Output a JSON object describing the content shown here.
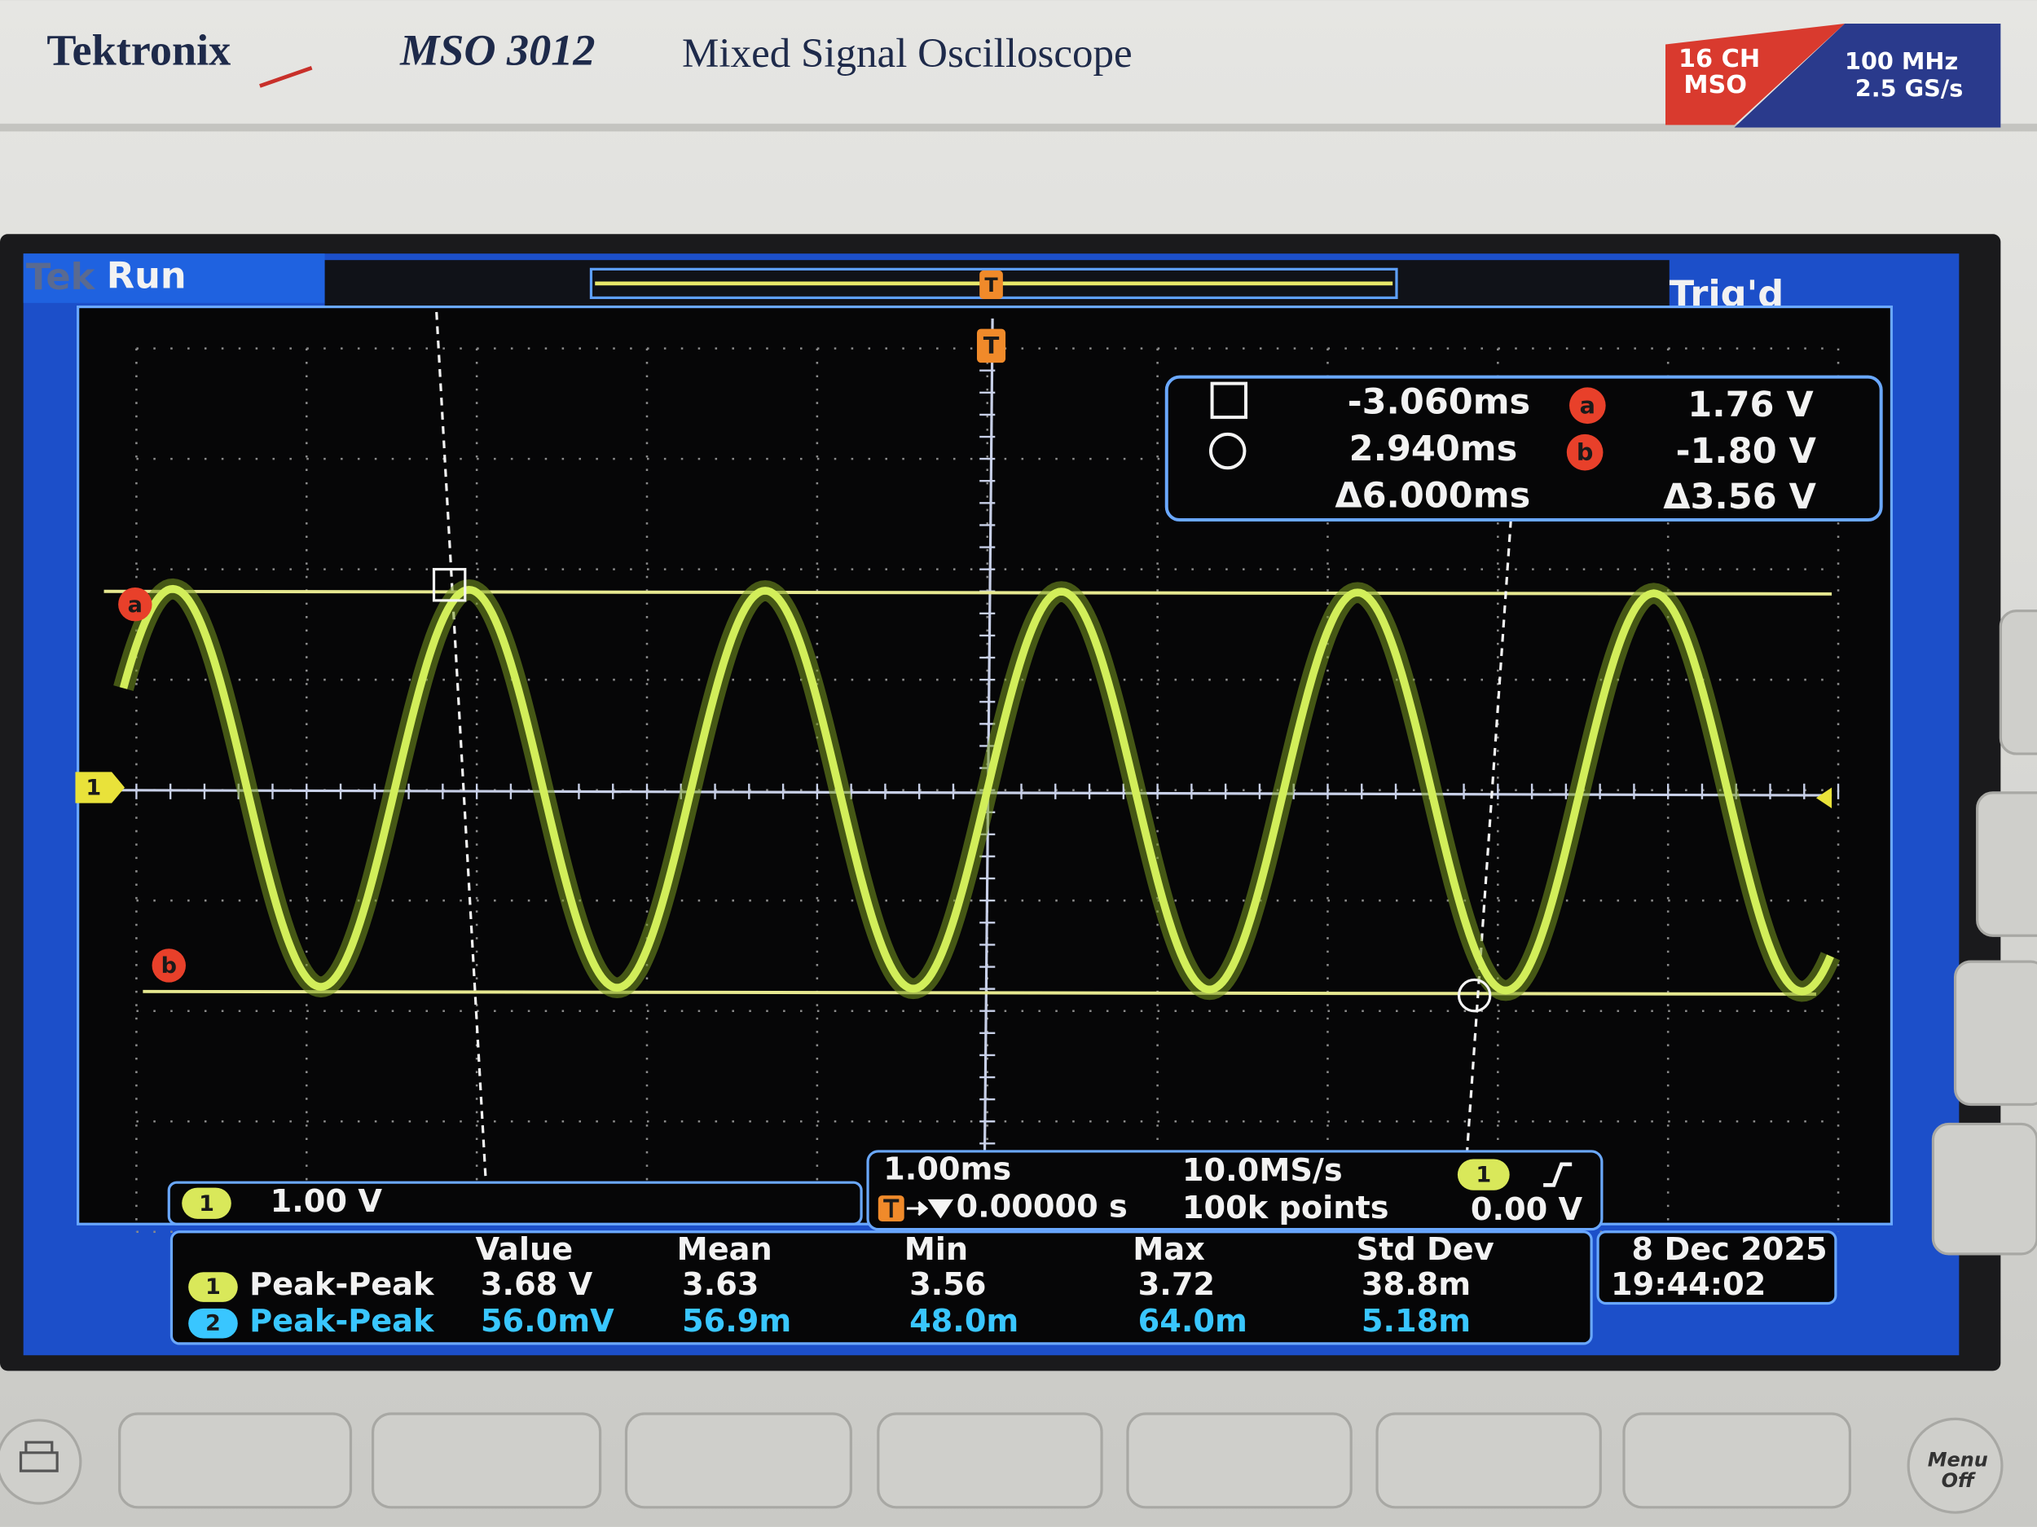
{
  "header": {
    "brand": "Tektronix",
    "model": "MSO 3012",
    "description": "Mixed Signal Oscilloscope",
    "badge": {
      "channels": "16 CH",
      "type": "MSO",
      "bandwidth": "100 MHz",
      "sample_rate": "2.5 GS/s"
    }
  },
  "status": {
    "logo": "Tek",
    "state": "Run",
    "trigger": "Trig'd"
  },
  "markers": {
    "trigger": "T",
    "cursor_a": "a",
    "cursor_b": "b",
    "channel": "1"
  },
  "cursors": {
    "time_a": "-3.060ms",
    "time_b": "2.940ms",
    "time_delta": "Δ6.000ms",
    "volt_a": "1.76 V",
    "volt_b": "-1.80 V",
    "volt_delta": "Δ3.56 V"
  },
  "channel": {
    "number": "1",
    "scale": "1.00 V"
  },
  "timebase": {
    "scale": "1.00ms",
    "sample_rate": "10.0MS/s",
    "position": "0.00000 s",
    "record_length": "100k points",
    "trigger_source": "1",
    "trigger_level": "0.00 V"
  },
  "measurements": {
    "headers": [
      "Value",
      "Mean",
      "Min",
      "Max",
      "Std Dev"
    ],
    "rows": [
      {
        "channel": "1",
        "type": "Peak-Peak",
        "values": [
          "3.68 V",
          "3.63",
          "3.56",
          "3.72",
          "38.8m"
        ]
      },
      {
        "channel": "2",
        "type": "Peak-Peak",
        "values": [
          "56.0mV",
          "56.9m",
          "48.0m",
          "64.0m",
          "5.18m"
        ]
      }
    ]
  },
  "datetime": {
    "date": "8 Dec 2025",
    "time": "19:44:02"
  },
  "buttons": {
    "menu": "Menu",
    "off": "Off"
  }
}
